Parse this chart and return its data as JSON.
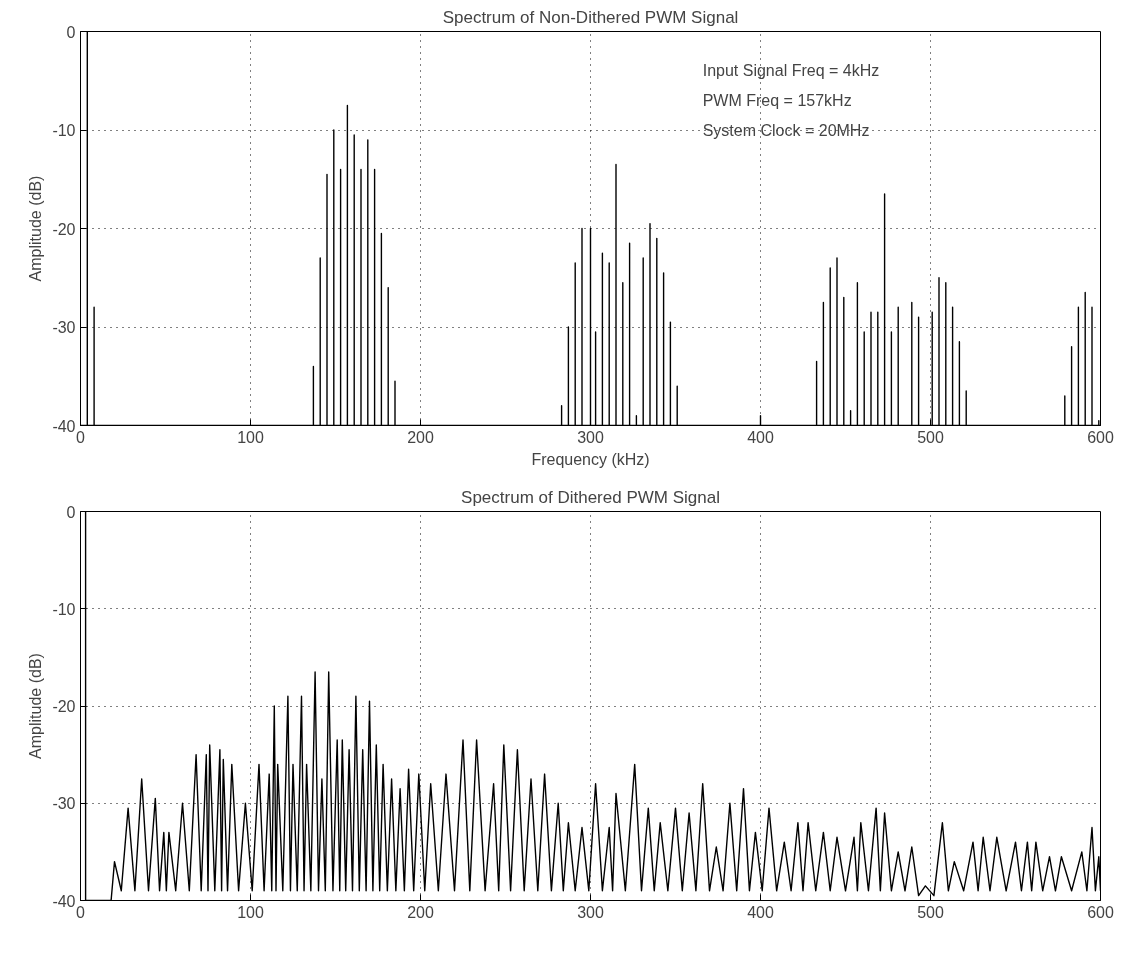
{
  "chart_data": [
    {
      "type": "line",
      "title": "Spectrum of Non-Dithered PWM Signal",
      "xlabel": "Frequency (kHz)",
      "ylabel": "Amplitude (dB)",
      "xlim": [
        0,
        600
      ],
      "ylim": [
        -40,
        0
      ],
      "xticks": [
        0,
        100,
        200,
        300,
        400,
        500,
        600
      ],
      "yticks": [
        -40,
        -30,
        -20,
        -10,
        0
      ],
      "grid": true,
      "annotations": [
        "Input Signal Freq = 4kHz",
        "PWM Freq = 157kHz",
        "System Clock = 20MHz"
      ],
      "series": [
        {
          "color": "#000000",
          "x": [
            0,
            4,
            4,
            4,
            8,
            8,
            8,
            137,
            137,
            137,
            141,
            141,
            141,
            145,
            145,
            145,
            149,
            149,
            149,
            153,
            153,
            153,
            157,
            157,
            157,
            161,
            161,
            161,
            165,
            165,
            165,
            169,
            169,
            169,
            173,
            173,
            173,
            177,
            177,
            177,
            181,
            181,
            181,
            185,
            185,
            185,
            283,
            283,
            283,
            287,
            287,
            287,
            291,
            291,
            291,
            295,
            295,
            295,
            300,
            300,
            300,
            303,
            303,
            303,
            307,
            307,
            307,
            311,
            311,
            311,
            315,
            315,
            315,
            319,
            319,
            319,
            323,
            323,
            323,
            327,
            327,
            327,
            331,
            331,
            331,
            335,
            335,
            335,
            339,
            339,
            339,
            343,
            343,
            343,
            347,
            347,
            347,
            351,
            351,
            351,
            400,
            400,
            400,
            433,
            433,
            433,
            437,
            437,
            437,
            441,
            441,
            441,
            445,
            445,
            445,
            449,
            449,
            449,
            453,
            453,
            453,
            457,
            457,
            457,
            461,
            461,
            461,
            465,
            465,
            465,
            469,
            469,
            469,
            473,
            473,
            473,
            477,
            477,
            477,
            481,
            481,
            481,
            489,
            489,
            489,
            493,
            493,
            493,
            501,
            501,
            501,
            505,
            505,
            505,
            509,
            509,
            509,
            513,
            513,
            513,
            517,
            517,
            517,
            521,
            521,
            521,
            579,
            579,
            579,
            583,
            583,
            583,
            587,
            587,
            587,
            591,
            591,
            591,
            595,
            595,
            595,
            599,
            599,
            599,
            600
          ],
          "values": [
            -40,
            -40,
            0,
            -40,
            -40,
            -28,
            -40,
            -40,
            -34,
            -40,
            -40,
            -23,
            -40,
            -40,
            -14.5,
            -40,
            -40,
            -10,
            -40,
            -40,
            -14,
            -40,
            -40,
            -7.5,
            -40,
            -40,
            -10.5,
            -40,
            -40,
            -14,
            -40,
            -40,
            -11,
            -40,
            -40,
            -14,
            -40,
            -40,
            -20.5,
            -40,
            -40,
            -26,
            -40,
            -40,
            -35.5,
            -40,
            -40,
            -38,
            -40,
            -40,
            -30,
            -40,
            -40,
            -23.5,
            -40,
            -40,
            -20,
            -40,
            -40,
            -20,
            -40,
            -40,
            -30.5,
            -40,
            -40,
            -22.5,
            -40,
            -40,
            -23.5,
            -40,
            -40,
            -13.5,
            -40,
            -40,
            -25.5,
            -40,
            -40,
            -21.5,
            -40,
            -40,
            -39,
            -40,
            -40,
            -23,
            -40,
            -40,
            -19.5,
            -40,
            -40,
            -21,
            -40,
            -40,
            -24.5,
            -40,
            -40,
            -29.5,
            -40,
            -40,
            -36,
            -40,
            -40,
            -39,
            -40,
            -40,
            -33.5,
            -40,
            -40,
            -27.5,
            -40,
            -40,
            -24,
            -40,
            -40,
            -23,
            -40,
            -40,
            -27,
            -40,
            -40,
            -38.5,
            -40,
            -40,
            -25.5,
            -40,
            -40,
            -30.5,
            -40,
            -40,
            -28.5,
            -40,
            -40,
            -28.5,
            -40,
            -40,
            -16.5,
            -40,
            -40,
            -30.5,
            -40,
            -40,
            -28,
            -40,
            -40,
            -27.5,
            -40,
            -40,
            -29,
            -40,
            -40,
            -28.5,
            -40,
            -40,
            -25,
            -40,
            -40,
            -25.5,
            -40,
            -40,
            -28,
            -40,
            -40,
            -31.5,
            -40,
            -40,
            -36.5,
            -40,
            -40,
            -37,
            -40,
            -40,
            -32,
            -40,
            -40,
            -28,
            -40,
            -40,
            -26.5,
            -40,
            -40,
            -28,
            -40,
            -40,
            -39.5,
            -40,
            -40
          ]
        }
      ]
    },
    {
      "type": "line",
      "title": "Spectrum of Dithered PWM Signal",
      "ylabel": "Amplitude (dB)",
      "xlim": [
        0,
        600
      ],
      "ylim": [
        -40,
        0
      ],
      "xticks": [
        0,
        100,
        200,
        300,
        400,
        500,
        600
      ],
      "yticks": [
        -40,
        -30,
        -20,
        -10,
        0
      ],
      "grid": true,
      "series": [
        {
          "color": "#000000",
          "x": [
            3,
            3,
            3,
            18,
            20,
            24,
            28,
            32,
            36,
            40,
            44,
            46.5,
            49,
            50.5,
            52,
            56,
            60,
            64,
            68,
            71,
            74,
            75,
            76,
            79,
            82,
            83,
            84,
            86.5,
            89,
            93,
            97,
            101,
            105,
            108,
            111,
            112.5,
            114,
            115,
            116,
            119,
            122,
            123.5,
            125,
            127.5,
            130,
            131.5,
            133,
            135.5,
            138,
            140,
            142,
            144,
            146,
            148.5,
            151,
            152.5,
            154,
            156,
            158,
            160,
            162,
            164,
            166,
            168,
            170,
            172,
            174,
            176,
            178,
            180.5,
            183,
            185.5,
            188,
            190.5,
            193,
            196,
            199,
            202.5,
            206,
            210.5,
            215,
            220,
            225,
            229,
            233,
            238,
            243,
            246,
            249,
            253,
            257,
            261,
            265,
            269,
            273,
            277,
            281,
            284,
            287,
            291,
            295,
            299,
            303,
            307,
            311,
            313,
            315,
            320.5,
            326,
            330,
            334,
            337.5,
            341,
            345.5,
            350,
            354,
            358,
            362,
            366,
            370,
            374,
            378,
            382,
            386,
            390,
            393.5,
            397,
            401,
            405,
            409.5,
            414,
            418,
            422,
            425,
            428,
            432.5,
            437,
            441,
            445,
            450,
            455,
            457,
            459,
            463.5,
            468,
            470.5,
            473,
            477,
            481,
            485,
            489,
            493,
            497,
            502,
            507,
            510.5,
            514,
            519.5,
            525,
            528,
            531,
            535,
            539,
            544.5,
            550,
            553.5,
            557,
            559.5,
            562,
            566,
            570,
            573.5,
            577,
            583,
            589,
            592,
            595,
            597,
            599,
            600
          ],
          "values": [
            -40,
            0,
            -40,
            -40,
            -36,
            -39,
            -30.5,
            -39,
            -27.5,
            -39,
            -29.5,
            -39,
            -33,
            -39,
            -33,
            -39,
            -30,
            -39,
            -25,
            -39,
            -25,
            -39,
            -24,
            -39,
            -24.5,
            -39,
            -25.5,
            -39,
            -26,
            -39,
            -30,
            -39,
            -26,
            -39,
            -27,
            -39,
            -20,
            -39,
            -26,
            -39,
            -19,
            -39,
            -26,
            -39,
            -19,
            -39,
            -26,
            -39,
            -16.5,
            -39,
            -27.5,
            -39,
            -16.5,
            -39,
            -23.5,
            -39,
            -23.5,
            -39,
            -24.5,
            -39,
            -19,
            -39,
            -24.5,
            -39,
            -19.5,
            -39,
            -24,
            -39,
            -26,
            -39,
            -27.5,
            -39,
            -28.5,
            -39,
            -26.5,
            -39,
            -27,
            -39,
            -28,
            -39,
            -27,
            -39,
            -23.5,
            -39,
            -23.5,
            -39,
            -28,
            -39,
            -24,
            -39,
            -24.5,
            -39,
            -27.5,
            -39,
            -27,
            -39,
            -30,
            -39,
            -32,
            -39,
            -32.5,
            -39,
            -28,
            -39,
            -32.5,
            -39,
            -29,
            -39,
            -26,
            -39,
            -30.5,
            -39,
            -32,
            -39,
            -30.5,
            -39,
            -31,
            -39,
            -28,
            -39,
            -34.5,
            -39,
            -30,
            -39,
            -28.5,
            -39,
            -33,
            -39,
            -30.5,
            -39,
            -34,
            -39,
            -32,
            -39,
            -32,
            -39,
            -33,
            -39,
            -33.5,
            -39,
            -33.5,
            -39,
            -32,
            -39,
            -30.5,
            -39,
            -31,
            -39,
            -35,
            -39,
            -34.5,
            -39.5,
            -38.5,
            -39.5,
            -32,
            -39,
            -36,
            -39,
            -34,
            -39,
            -33.5,
            -39,
            -33.5,
            -39,
            -34,
            -39,
            -34,
            -39,
            -34,
            -39,
            -35.5,
            -39,
            -35.5,
            -39,
            -35,
            -39,
            -32.5,
            -39,
            -35.5,
            -39
          ]
        }
      ]
    }
  ]
}
